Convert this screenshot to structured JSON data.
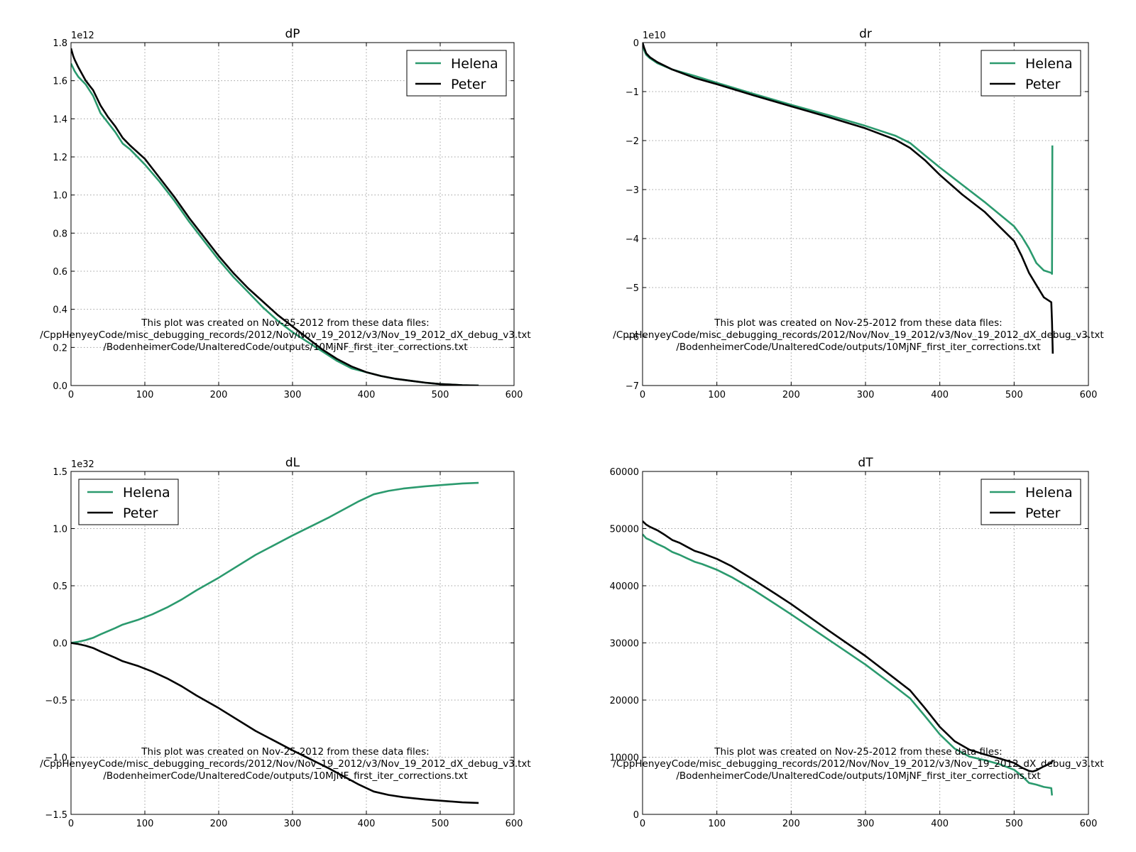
{
  "figure": {
    "note_lines": [
      "This plot was created on Nov-25-2012 from these data files:",
      "/CppHenyeyCode/misc_debugging_records/2012/Nov/Nov_19_2012/v3/Nov_19_2012_dX_debug_v3.txt",
      "/BodenheimerCode/UnalteredCode/outputs/10MjNF_first_iter_corrections.txt"
    ]
  },
  "colors": {
    "helena": "#2b9a6e",
    "peter": "#000000",
    "grid": "#a0a0a0"
  },
  "chart_data": [
    {
      "type": "line",
      "title": "dP",
      "offset_text": "1e12",
      "xlim": [
        0,
        600
      ],
      "ylim": [
        0,
        1.8
      ],
      "xticks": [
        0,
        100,
        200,
        300,
        400,
        500,
        600
      ],
      "xtick_labels": [
        "0",
        "100",
        "200",
        "300",
        "400",
        "500",
        "600"
      ],
      "yticks": [
        0,
        0.2,
        0.4,
        0.6,
        0.8,
        1.0,
        1.2,
        1.4,
        1.6,
        1.8
      ],
      "ytick_labels": [
        "0.0",
        "0.2",
        "0.4",
        "0.6",
        "0.8",
        "1.0",
        "1.2",
        "1.4",
        "1.6",
        "1.8"
      ],
      "grid": true,
      "legend_position": "top-right",
      "series": [
        {
          "name": "Helena",
          "color": "#2b9a6e",
          "x": [
            0,
            5,
            10,
            20,
            30,
            40,
            50,
            60,
            70,
            80,
            100,
            120,
            140,
            160,
            180,
            200,
            220,
            240,
            260,
            280,
            300,
            320,
            340,
            360,
            380,
            400,
            420,
            440,
            460,
            480,
            500,
            520,
            530,
            552
          ],
          "y": [
            1.69,
            1.65,
            1.62,
            1.58,
            1.52,
            1.43,
            1.38,
            1.33,
            1.27,
            1.24,
            1.16,
            1.07,
            0.97,
            0.86,
            0.76,
            0.66,
            0.57,
            0.49,
            0.41,
            0.34,
            0.28,
            0.23,
            0.18,
            0.13,
            0.09,
            0.07,
            0.05,
            0.035,
            0.025,
            0.015,
            0.008,
            0.004,
            0.002,
            0.0
          ]
        },
        {
          "name": "Peter",
          "color": "#000000",
          "x": [
            0,
            3,
            5,
            10,
            20,
            30,
            40,
            50,
            60,
            70,
            80,
            100,
            120,
            140,
            160,
            180,
            200,
            220,
            240,
            260,
            280,
            300,
            320,
            340,
            360,
            380,
            400,
            420,
            440,
            460,
            480,
            500,
            520,
            530,
            552
          ],
          "y": [
            1.77,
            1.73,
            1.71,
            1.67,
            1.6,
            1.55,
            1.47,
            1.41,
            1.36,
            1.3,
            1.26,
            1.19,
            1.09,
            0.99,
            0.88,
            0.78,
            0.68,
            0.59,
            0.51,
            0.44,
            0.37,
            0.31,
            0.25,
            0.19,
            0.14,
            0.1,
            0.07,
            0.05,
            0.035,
            0.025,
            0.015,
            0.008,
            0.004,
            0.002,
            0.0
          ]
        }
      ]
    },
    {
      "type": "line",
      "title": "dr",
      "offset_text": "1e10",
      "xlim": [
        0,
        600
      ],
      "ylim": [
        -7,
        0
      ],
      "xticks": [
        0,
        100,
        200,
        300,
        400,
        500,
        600
      ],
      "xtick_labels": [
        "0",
        "100",
        "200",
        "300",
        "400",
        "500",
        "600"
      ],
      "yticks": [
        -7,
        -6,
        -5,
        -4,
        -3,
        -2,
        -1,
        0
      ],
      "ytick_labels": [
        "−7",
        "−6",
        "−5",
        "−4",
        "−3",
        "−2",
        "−1",
        "0"
      ],
      "grid": true,
      "legend_position": "top-right",
      "series": [
        {
          "name": "Helena",
          "color": "#2b9a6e",
          "x": [
            0,
            2,
            5,
            10,
            20,
            40,
            70,
            100,
            150,
            200,
            250,
            300,
            340,
            360,
            380,
            400,
            430,
            460,
            480,
            500,
            510,
            520,
            530,
            540,
            550,
            551,
            551.5
          ],
          "y": [
            0.0,
            -0.15,
            -0.25,
            -0.32,
            -0.42,
            -0.55,
            -0.68,
            -0.82,
            -1.05,
            -1.27,
            -1.48,
            -1.7,
            -1.9,
            -2.05,
            -2.3,
            -2.55,
            -2.9,
            -3.25,
            -3.5,
            -3.75,
            -3.95,
            -4.2,
            -4.5,
            -4.65,
            -4.7,
            -4.72,
            -2.1
          ]
        },
        {
          "name": "Peter",
          "color": "#000000",
          "x": [
            0,
            2,
            5,
            10,
            20,
            40,
            70,
            100,
            150,
            200,
            250,
            300,
            340,
            360,
            380,
            400,
            430,
            460,
            480,
            500,
            510,
            520,
            530,
            540,
            550,
            551,
            552
          ],
          "y": [
            0.0,
            -0.1,
            -0.22,
            -0.3,
            -0.4,
            -0.55,
            -0.72,
            -0.85,
            -1.08,
            -1.3,
            -1.52,
            -1.75,
            -1.98,
            -2.15,
            -2.4,
            -2.7,
            -3.1,
            -3.45,
            -3.75,
            -4.05,
            -4.35,
            -4.7,
            -4.95,
            -5.2,
            -5.3,
            -5.7,
            -6.35
          ]
        }
      ]
    },
    {
      "type": "line",
      "title": "dL",
      "offset_text": "1e32",
      "xlim": [
        0,
        600
      ],
      "ylim": [
        -1.5,
        1.5
      ],
      "xticks": [
        0,
        100,
        200,
        300,
        400,
        500,
        600
      ],
      "xtick_labels": [
        "0",
        "100",
        "200",
        "300",
        "400",
        "500",
        "600"
      ],
      "yticks": [
        -1.5,
        -1.0,
        -0.5,
        0.0,
        0.5,
        1.0,
        1.5
      ],
      "ytick_labels": [
        "−1.5",
        "−1.0",
        "−0.5",
        "0.0",
        "0.5",
        "1.0",
        "1.5"
      ],
      "grid": true,
      "legend_position": "top-left",
      "series": [
        {
          "name": "Helena",
          "color": "#2b9a6e",
          "x": [
            0,
            10,
            20,
            30,
            40,
            60,
            70,
            90,
            110,
            130,
            150,
            170,
            200,
            250,
            300,
            350,
            370,
            390,
            410,
            430,
            450,
            480,
            500,
            530,
            552
          ],
          "y": [
            0.0,
            0.01,
            0.025,
            0.045,
            0.075,
            0.13,
            0.16,
            0.2,
            0.25,
            0.31,
            0.38,
            0.46,
            0.57,
            0.77,
            0.94,
            1.1,
            1.17,
            1.24,
            1.3,
            1.33,
            1.35,
            1.37,
            1.38,
            1.395,
            1.4
          ]
        },
        {
          "name": "Peter",
          "color": "#000000",
          "x": [
            0,
            10,
            20,
            30,
            40,
            60,
            70,
            90,
            110,
            130,
            150,
            170,
            200,
            250,
            300,
            350,
            370,
            390,
            410,
            430,
            450,
            480,
            500,
            530,
            552
          ],
          "y": [
            0.0,
            -0.01,
            -0.025,
            -0.045,
            -0.075,
            -0.13,
            -0.16,
            -0.2,
            -0.25,
            -0.31,
            -0.38,
            -0.46,
            -0.57,
            -0.77,
            -0.94,
            -1.1,
            -1.17,
            -1.24,
            -1.3,
            -1.33,
            -1.35,
            -1.37,
            -1.38,
            -1.395,
            -1.4
          ]
        }
      ]
    },
    {
      "type": "line",
      "title": "dT",
      "offset_text": "",
      "xlim": [
        0,
        600
      ],
      "ylim": [
        0,
        60000
      ],
      "xticks": [
        0,
        100,
        200,
        300,
        400,
        500,
        600
      ],
      "xtick_labels": [
        "0",
        "100",
        "200",
        "300",
        "400",
        "500",
        "600"
      ],
      "yticks": [
        0,
        10000,
        20000,
        30000,
        40000,
        50000,
        60000
      ],
      "ytick_labels": [
        "0",
        "10000",
        "20000",
        "30000",
        "40000",
        "50000",
        "60000"
      ],
      "grid": true,
      "legend_position": "top-right",
      "series": [
        {
          "name": "Helena",
          "color": "#2b9a6e",
          "x": [
            0,
            5,
            10,
            20,
            30,
            40,
            50,
            60,
            70,
            80,
            100,
            120,
            150,
            180,
            200,
            250,
            300,
            340,
            360,
            380,
            400,
            420,
            440,
            460,
            480,
            500,
            510,
            520,
            530,
            540,
            550,
            551
          ],
          "y": [
            49000,
            48300,
            48000,
            47300,
            46700,
            45900,
            45400,
            44800,
            44200,
            43800,
            42800,
            41500,
            39200,
            36700,
            35000,
            30600,
            26200,
            22300,
            20300,
            17200,
            14000,
            11500,
            10100,
            9500,
            8800,
            7800,
            6800,
            5500,
            5200,
            4800,
            4600,
            3300
          ]
        },
        {
          "name": "Peter",
          "color": "#000000",
          "x": [
            0,
            5,
            10,
            20,
            30,
            40,
            50,
            60,
            70,
            80,
            100,
            120,
            150,
            180,
            200,
            250,
            300,
            340,
            360,
            380,
            400,
            420,
            440,
            460,
            480,
            500,
            510,
            520,
            525,
            530,
            540,
            550,
            552
          ],
          "y": [
            51300,
            50700,
            50300,
            49700,
            48900,
            48000,
            47500,
            46800,
            46100,
            45700,
            44700,
            43400,
            41000,
            38500,
            36800,
            32200,
            27700,
            23700,
            21700,
            18600,
            15300,
            12800,
            11300,
            10500,
            9800,
            9000,
            8200,
            7600,
            7500,
            7700,
            8400,
            9000,
            9500
          ]
        }
      ]
    }
  ]
}
